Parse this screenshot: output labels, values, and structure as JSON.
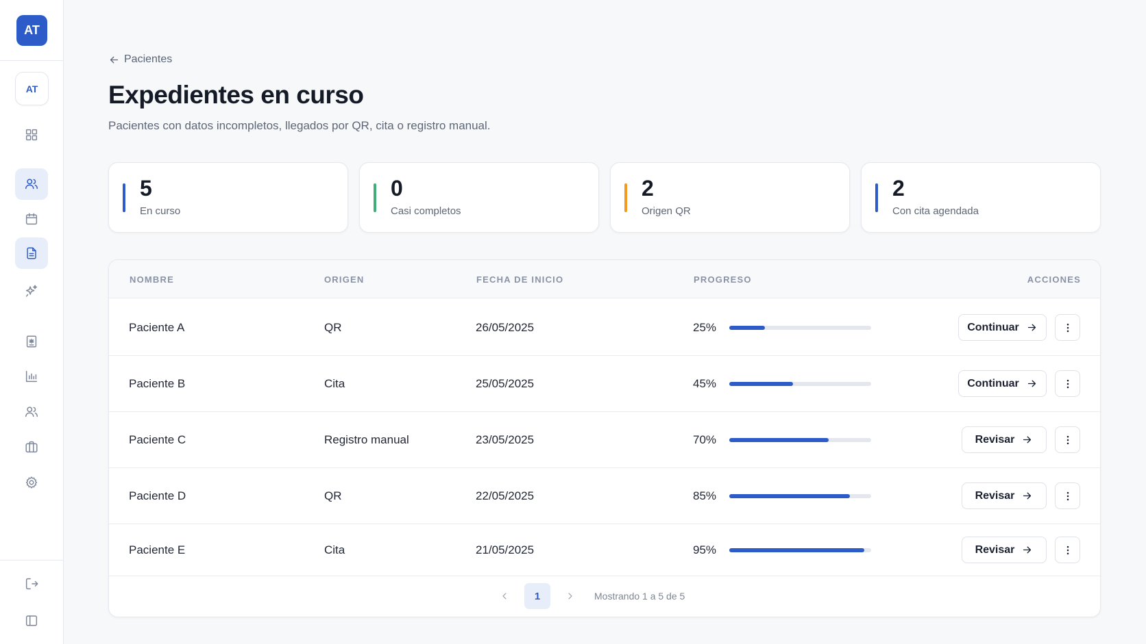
{
  "sidebar": {
    "brand": "AT",
    "user_initials": "AT",
    "items": [
      {
        "name": "grid-icon"
      },
      {
        "name": "users-icon"
      },
      {
        "name": "calendar-icon"
      },
      {
        "name": "document-icon"
      },
      {
        "name": "sparkles-icon"
      },
      {
        "name": "medical-report-icon"
      },
      {
        "name": "bar-chart-icon"
      },
      {
        "name": "team-icon"
      },
      {
        "name": "briefcase-icon"
      },
      {
        "name": "gear-icon"
      },
      {
        "name": "logout-icon"
      },
      {
        "name": "sidebar-toggle-icon"
      }
    ]
  },
  "header": {
    "back_label": "Pacientes",
    "title": "Expedientes en curso",
    "subtitle": "Pacientes con datos incompletos, llegados por QR, cita o registro manual."
  },
  "stats": [
    {
      "value": "5",
      "label": "En curso",
      "color": "#2d5bc8"
    },
    {
      "value": "0",
      "label": "Casi completos",
      "color": "#3fb07a"
    },
    {
      "value": "2",
      "label": "Origen QR",
      "color": "#f29a1f"
    },
    {
      "value": "2",
      "label": "Con cita agendada",
      "color": "#2d5bc8"
    }
  ],
  "table": {
    "headers": {
      "name": "NOMBRE",
      "origin": "ORIGEN",
      "start_date": "FECHA DE INICIO",
      "progress": "PROGRESO",
      "actions": "ACCIONES"
    },
    "rows": [
      {
        "name": "Paciente A",
        "origin": "QR",
        "date": "26/05/2025",
        "progress_label": "25%",
        "progress": 0.25,
        "action": "Continuar"
      },
      {
        "name": "Paciente B",
        "origin": "Cita",
        "date": "25/05/2025",
        "progress_label": "45%",
        "progress": 0.45,
        "action": "Continuar"
      },
      {
        "name": "Paciente C",
        "origin": "Registro manual",
        "date": "23/05/2025",
        "progress_label": "70%",
        "progress": 0.7,
        "action": "Revisar"
      },
      {
        "name": "Paciente D",
        "origin": "QR",
        "date": "22/05/2025",
        "progress_label": "85%",
        "progress": 0.85,
        "action": "Revisar"
      },
      {
        "name": "Paciente E",
        "origin": "Cita",
        "date": "21/05/2025",
        "progress_label": "95%",
        "progress": 0.95,
        "action": "Revisar"
      }
    ]
  },
  "pagination": {
    "current_page": "1",
    "summary": "Mostrando 1 a 5 de 5"
  }
}
